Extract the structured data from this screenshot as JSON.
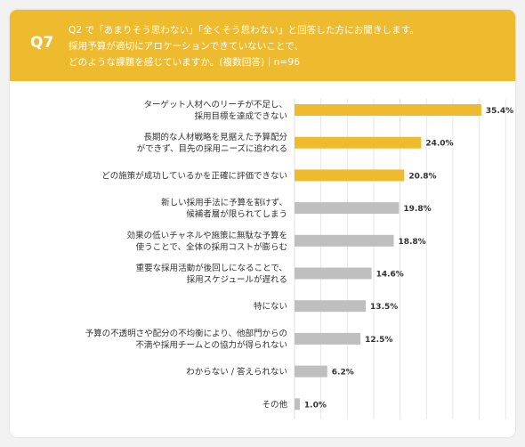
{
  "question": {
    "number": "Q7",
    "lines": [
      "Q2 で「あまりそう思わない」「全くそう思わない」と回答した方にお聞きします。",
      "採用予算が適切にアロケーションできていないことで、",
      "どのような課題を感じていますか。(複数回答)｜n=96"
    ]
  },
  "colors": {
    "header": "#efbb2e",
    "bar_highlight": "#efbb2e",
    "bar_default": "#bfbfbf",
    "grid": "#e0e0e0"
  },
  "chart_data": {
    "type": "bar",
    "orientation": "horizontal",
    "xlim": [
      0,
      40
    ],
    "grid": true,
    "highlight_count": 3,
    "categories": [
      [
        "ターゲット人材へのリーチが不足し、",
        "採用目標を達成できない"
      ],
      [
        "長期的な人材戦略を見据えた予算配分",
        "ができず、目先の採用ニーズに追われる"
      ],
      [
        "どの施策が成功しているかを正確に評価できない"
      ],
      [
        "新しい採用手法に予算を割けず、",
        "候補者層が限られてしまう"
      ],
      [
        "効果の低いチャネルや施策に無駄な予算を",
        "使うことで、全体の採用コストが膨らむ"
      ],
      [
        "重要な採用活動が後回しになることで、",
        "採用スケジュールが遅れる"
      ],
      [
        "特にない"
      ],
      [
        "予算の不透明さや配分の不均衡により、他部門からの",
        "不満や採用チームとの協力が得られない"
      ],
      [
        "わからない / 答えられない"
      ],
      [
        "その他"
      ]
    ],
    "values": [
      35.4,
      24.0,
      20.8,
      19.8,
      18.8,
      14.6,
      13.5,
      12.5,
      6.2,
      1.0
    ],
    "value_labels": [
      "35.4%",
      "24.0%",
      "20.8%",
      "19.8%",
      "18.8%",
      "14.6%",
      "13.5%",
      "12.5%",
      "6.2%",
      "1.0%"
    ]
  }
}
